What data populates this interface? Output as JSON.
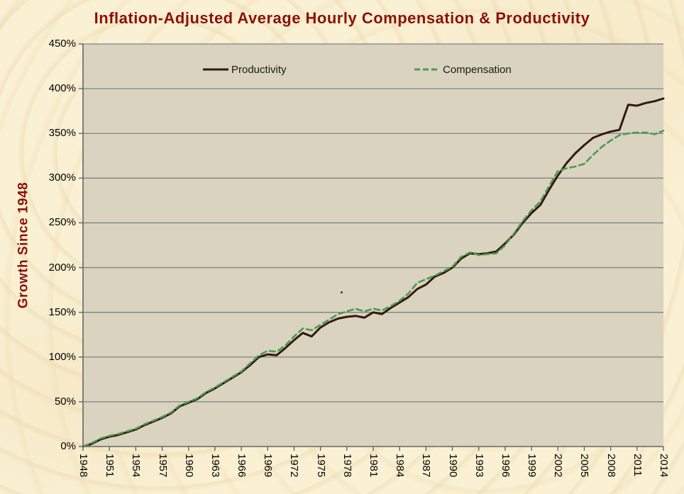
{
  "title": "Inflation-Adjusted Average Hourly Compensation & Productivity",
  "y_axis": {
    "label": "Growth Since 1948",
    "tick_labels": [
      "450%",
      "400%",
      "350%",
      "300%",
      "250%",
      "200%",
      "150%",
      "100%",
      "50%",
      "0%"
    ]
  },
  "x_axis": {
    "tick_labels": [
      "1948",
      "1951",
      "1954",
      "1957",
      "1960",
      "1963",
      "1966",
      "1969",
      "1972",
      "1975",
      "1978",
      "1981",
      "1984",
      "1987",
      "1990",
      "1993",
      "1996",
      "1999",
      "2002",
      "2005",
      "2008",
      "2011",
      "2014"
    ]
  },
  "legend": {
    "items": [
      {
        "label": "Productivity",
        "line_style": "solid"
      },
      {
        "label": "Compensation",
        "line_style": "dashed"
      }
    ]
  },
  "colors": {
    "page_bg": "#FAF0D3",
    "plot_bg": "#D9D3BF",
    "title_text": "#8B110B",
    "axis_title_text": "#8B110B",
    "tick_text": "#000000",
    "legend_text": "#1A1A1A",
    "gridline": "#7F8387",
    "axis_line": "#63676A",
    "productivity_line": "#33190E",
    "compensation_line": "#4C9B4F"
  },
  "chart_data": {
    "type": "line",
    "title": "Inflation-Adjusted Average Hourly Compensation & Productivity",
    "xlabel": "",
    "ylabel": "Growth Since 1948",
    "ylim": [
      0,
      450
    ],
    "xlim": [
      1948,
      2014
    ],
    "y_tick_step_percent": 50,
    "x_tick_step_years": 3,
    "grid": true,
    "legend_position": "top-inside",
    "units": "percent growth since 1948",
    "x": [
      1948,
      1949,
      1950,
      1951,
      1952,
      1953,
      1954,
      1955,
      1956,
      1957,
      1958,
      1959,
      1960,
      1961,
      1962,
      1963,
      1964,
      1965,
      1966,
      1967,
      1968,
      1969,
      1970,
      1971,
      1972,
      1973,
      1974,
      1975,
      1976,
      1977,
      1978,
      1979,
      1980,
      1981,
      1982,
      1983,
      1984,
      1985,
      1986,
      1987,
      1988,
      1989,
      1990,
      1991,
      1992,
      1993,
      1994,
      1995,
      1996,
      1997,
      1998,
      1999,
      2000,
      2001,
      2002,
      2003,
      2004,
      2005,
      2006,
      2007,
      2008,
      2009,
      2010,
      2011,
      2012,
      2013,
      2014
    ],
    "series": [
      {
        "name": "Productivity",
        "line_style": "solid",
        "color": "#33190E",
        "values": [
          0,
          3,
          8,
          11,
          13,
          16,
          19,
          24,
          28,
          32,
          37,
          45,
          49,
          53,
          60,
          65,
          71,
          77,
          83,
          91,
          100,
          103,
          102,
          110,
          119,
          127,
          123,
          133,
          139,
          143,
          145,
          146,
          144,
          150,
          148,
          155,
          161,
          167,
          176,
          181,
          190,
          194,
          200,
          210,
          216,
          215,
          216,
          218,
          227,
          237,
          250,
          261,
          270,
          287,
          303,
          317,
          328,
          337,
          345,
          349,
          352,
          354,
          382,
          381,
          384,
          386,
          389
        ]
      },
      {
        "name": "Compensation",
        "line_style": "dashed",
        "color": "#4C9B4F",
        "values": [
          0,
          4,
          9,
          12,
          14,
          17,
          20,
          25,
          29,
          33,
          38,
          46,
          50,
          54,
          61,
          66,
          72,
          78,
          84,
          93,
          102,
          107,
          106,
          113,
          123,
          132,
          130,
          136,
          142,
          148,
          151,
          154,
          151,
          154,
          152,
          157,
          163,
          171,
          183,
          187,
          191,
          196,
          201,
          212,
          217,
          214,
          215,
          216,
          225,
          238,
          252,
          264,
          274,
          291,
          308,
          311,
          313,
          316,
          326,
          335,
          342,
          348,
          350,
          351,
          351,
          349,
          353
        ]
      }
    ]
  }
}
